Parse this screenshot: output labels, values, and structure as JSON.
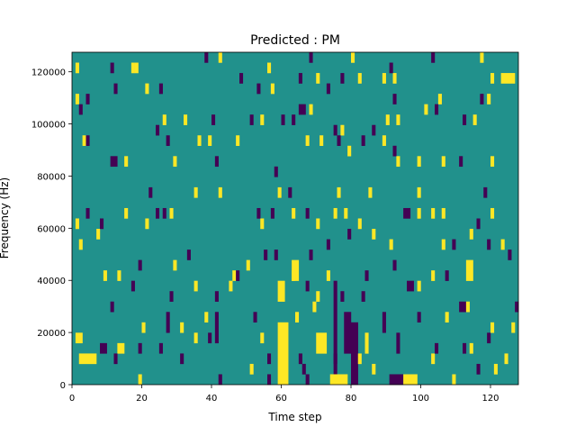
{
  "chart_data": {
    "type": "heatmap",
    "title": "Predicted : PM",
    "xlabel": "Time step",
    "ylabel": "Frequency (Hz)",
    "xlim": [
      0,
      128
    ],
    "ylim": [
      0,
      127500
    ],
    "n_time_steps": 128,
    "n_freq_bins": 32,
    "x_ticks": [
      0,
      20,
      40,
      60,
      80,
      100,
      120
    ],
    "x_tick_labels": [
      "0",
      "20",
      "40",
      "60",
      "80",
      "100",
      "120"
    ],
    "y_ticks": [
      0,
      20000,
      40000,
      60000,
      80000,
      100000,
      120000
    ],
    "y_tick_labels": [
      "0",
      "20000",
      "40000",
      "60000",
      "80000",
      "100000",
      "120000"
    ],
    "class_values": {
      "low": 0,
      "background": 1,
      "high": 2
    },
    "colors": {
      "0": "#440154",
      "1": "#21918c",
      "2": "#fde725"
    },
    "background_value": 1,
    "cells_format": "[t_start, t_end, bin_start, bin_end, value] (inclusive)",
    "cells": [
      [
        2,
        6,
        2,
        2,
        2
      ],
      [
        1,
        2,
        4,
        4,
        2
      ],
      [
        13,
        14,
        3,
        3,
        2
      ],
      [
        19,
        19,
        0,
        0,
        2
      ],
      [
        20,
        20,
        5,
        5,
        2
      ],
      [
        9,
        9,
        10,
        10,
        2
      ],
      [
        13,
        13,
        10,
        10,
        2
      ],
      [
        1,
        1,
        30,
        30,
        2
      ],
      [
        17,
        17,
        30,
        30,
        2
      ],
      [
        1,
        1,
        27,
        27,
        2
      ],
      [
        3,
        3,
        23,
        23,
        2
      ],
      [
        15,
        15,
        21,
        21,
        2
      ],
      [
        1,
        1,
        15,
        15,
        2
      ],
      [
        2,
        2,
        13,
        13,
        2
      ],
      [
        7,
        7,
        14,
        14,
        2
      ],
      [
        4,
        4,
        27,
        27,
        0
      ],
      [
        2,
        2,
        26,
        26,
        0
      ],
      [
        4,
        4,
        23,
        23,
        0
      ],
      [
        11,
        12,
        21,
        21,
        0
      ],
      [
        4,
        4,
        16,
        16,
        0
      ],
      [
        8,
        8,
        15,
        15,
        0
      ],
      [
        19,
        19,
        11,
        11,
        0
      ],
      [
        17,
        17,
        9,
        9,
        0
      ],
      [
        11,
        11,
        7,
        7,
        0
      ],
      [
        19,
        19,
        3,
        3,
        0
      ],
      [
        12,
        12,
        2,
        2,
        0
      ],
      [
        8,
        9,
        3,
        3,
        0
      ],
      [
        25,
        25,
        3,
        3,
        0
      ],
      [
        27,
        27,
        5,
        6,
        0
      ],
      [
        28,
        28,
        8,
        8,
        0
      ],
      [
        29,
        29,
        11,
        11,
        2
      ],
      [
        33,
        33,
        12,
        12,
        0
      ],
      [
        31,
        31,
        5,
        5,
        2
      ],
      [
        35,
        35,
        4,
        4,
        2
      ],
      [
        35,
        35,
        9,
        9,
        2
      ],
      [
        31,
        31,
        2,
        2,
        0
      ],
      [
        41,
        41,
        8,
        8,
        0
      ],
      [
        39,
        39,
        4,
        4,
        0
      ],
      [
        41,
        41,
        4,
        6,
        0
      ],
      [
        42,
        42,
        0,
        0,
        0
      ],
      [
        38,
        38,
        6,
        6,
        2
      ],
      [
        45,
        45,
        9,
        9,
        2
      ],
      [
        46,
        46,
        10,
        10,
        2
      ],
      [
        47,
        47,
        10,
        10,
        0
      ],
      [
        50,
        50,
        11,
        11,
        2
      ],
      [
        51,
        51,
        1,
        1,
        2
      ],
      [
        54,
        54,
        4,
        4,
        2
      ],
      [
        56,
        56,
        2,
        2,
        0
      ],
      [
        56,
        56,
        0,
        0,
        0
      ],
      [
        52,
        52,
        6,
        6,
        0
      ],
      [
        59,
        61,
        0,
        5,
        2
      ],
      [
        59,
        60,
        8,
        9,
        2
      ],
      [
        63,
        64,
        10,
        11,
        2
      ],
      [
        64,
        64,
        6,
        6,
        2
      ],
      [
        65,
        65,
        2,
        2,
        0
      ],
      [
        66,
        66,
        1,
        1,
        0
      ],
      [
        67,
        67,
        0,
        0,
        0
      ],
      [
        68,
        68,
        12,
        12,
        0
      ],
      [
        67,
        67,
        9,
        9,
        0
      ],
      [
        69,
        69,
        7,
        7,
        2
      ],
      [
        70,
        70,
        8,
        8,
        2
      ],
      [
        70,
        72,
        3,
        4,
        2
      ],
      [
        73,
        73,
        10,
        10,
        2
      ],
      [
        75,
        75,
        2,
        2,
        0
      ],
      [
        75,
        75,
        1,
        9,
        0
      ],
      [
        77,
        77,
        8,
        8,
        0
      ],
      [
        78,
        79,
        3,
        6,
        0
      ],
      [
        74,
        78,
        0,
        0,
        2
      ],
      [
        80,
        81,
        0,
        5,
        0
      ],
      [
        82,
        82,
        2,
        2,
        2
      ],
      [
        84,
        84,
        3,
        4,
        2
      ],
      [
        83,
        83,
        8,
        8,
        0
      ],
      [
        84,
        84,
        10,
        10,
        0
      ],
      [
        86,
        86,
        1,
        1,
        2
      ],
      [
        89,
        89,
        5,
        6,
        0
      ],
      [
        92,
        92,
        11,
        11,
        0
      ],
      [
        93,
        93,
        3,
        4,
        0
      ],
      [
        91,
        94,
        0,
        0,
        0
      ],
      [
        95,
        98,
        0,
        0,
        2
      ],
      [
        96,
        97,
        9,
        9,
        0
      ],
      [
        99,
        99,
        9,
        9,
        2
      ],
      [
        99,
        99,
        6,
        6,
        0
      ],
      [
        103,
        103,
        2,
        2,
        2
      ],
      [
        104,
        104,
        3,
        3,
        0
      ],
      [
        103,
        103,
        10,
        10,
        2
      ],
      [
        107,
        107,
        10,
        10,
        0
      ],
      [
        107,
        107,
        6,
        6,
        2
      ],
      [
        109,
        109,
        0,
        0,
        2
      ],
      [
        111,
        112,
        7,
        7,
        0
      ],
      [
        113,
        113,
        7,
        7,
        2
      ],
      [
        113,
        114,
        10,
        11,
        2
      ],
      [
        112,
        112,
        3,
        3,
        0
      ],
      [
        114,
        114,
        3,
        3,
        2
      ],
      [
        116,
        116,
        1,
        1,
        0
      ],
      [
        119,
        119,
        4,
        4,
        0
      ],
      [
        120,
        120,
        5,
        5,
        2
      ],
      [
        121,
        121,
        1,
        1,
        2
      ],
      [
        124,
        124,
        2,
        2,
        2
      ],
      [
        126,
        126,
        5,
        5,
        2
      ],
      [
        127,
        127,
        7,
        7,
        0
      ],
      [
        125,
        125,
        12,
        12,
        0
      ],
      [
        123,
        123,
        13,
        13,
        2
      ],
      [
        119,
        119,
        13,
        13,
        0
      ],
      [
        120,
        120,
        16,
        16,
        2
      ],
      [
        116,
        116,
        15,
        15,
        0
      ],
      [
        114,
        114,
        14,
        14,
        2
      ],
      [
        109,
        109,
        13,
        13,
        0
      ],
      [
        106,
        106,
        13,
        13,
        2
      ],
      [
        106,
        106,
        16,
        16,
        2
      ],
      [
        103,
        103,
        16,
        16,
        2
      ],
      [
        99,
        99,
        16,
        16,
        2
      ],
      [
        95,
        96,
        16,
        16,
        0
      ],
      [
        123,
        126,
        29,
        29,
        2
      ],
      [
        120,
        120,
        29,
        29,
        2
      ],
      [
        117,
        117,
        27,
        27,
        0
      ],
      [
        119,
        119,
        27,
        27,
        2
      ],
      [
        117,
        117,
        31,
        31,
        2
      ],
      [
        120,
        120,
        21,
        21,
        2
      ],
      [
        118,
        118,
        18,
        18,
        0
      ],
      [
        115,
        115,
        25,
        25,
        2
      ],
      [
        112,
        112,
        25,
        25,
        0
      ],
      [
        111,
        111,
        21,
        21,
        0
      ],
      [
        106,
        106,
        21,
        21,
        2
      ],
      [
        105,
        105,
        27,
        27,
        2
      ],
      [
        104,
        104,
        26,
        26,
        0
      ],
      [
        103,
        103,
        31,
        31,
        0
      ],
      [
        101,
        101,
        26,
        26,
        2
      ],
      [
        99,
        99,
        21,
        21,
        2
      ],
      [
        99,
        99,
        18,
        18,
        2
      ],
      [
        92,
        92,
        29,
        29,
        2
      ],
      [
        92,
        92,
        27,
        27,
        0
      ],
      [
        93,
        93,
        25,
        25,
        2
      ],
      [
        92,
        92,
        22,
        22,
        0
      ],
      [
        93,
        93,
        21,
        21,
        2
      ],
      [
        90,
        90,
        25,
        25,
        2
      ],
      [
        89,
        89,
        23,
        23,
        2
      ],
      [
        89,
        89,
        29,
        29,
        2
      ],
      [
        91,
        91,
        30,
        30,
        0
      ],
      [
        85,
        85,
        18,
        18,
        2
      ],
      [
        83,
        83,
        23,
        23,
        0
      ],
      [
        86,
        86,
        24,
        24,
        0
      ],
      [
        82,
        82,
        29,
        29,
        2
      ],
      [
        79,
        79,
        22,
        22,
        2
      ],
      [
        80,
        80,
        31,
        31,
        2
      ],
      [
        77,
        77,
        24,
        24,
        2
      ],
      [
        77,
        77,
        29,
        29,
        0
      ],
      [
        75,
        75,
        24,
        24,
        0
      ],
      [
        76,
        76,
        23,
        23,
        0
      ],
      [
        73,
        73,
        28,
        28,
        0
      ],
      [
        70,
        70,
        29,
        29,
        2
      ],
      [
        71,
        71,
        23,
        23,
        2
      ],
      [
        67,
        67,
        23,
        23,
        2
      ],
      [
        68,
        68,
        26,
        26,
        2
      ],
      [
        65,
        66,
        26,
        26,
        0
      ],
      [
        68,
        68,
        31,
        31,
        0
      ],
      [
        65,
        65,
        29,
        29,
        0
      ],
      [
        63,
        63,
        25,
        25,
        0
      ],
      [
        60,
        60,
        25,
        25,
        0
      ],
      [
        58,
        58,
        20,
        20,
        0
      ],
      [
        59,
        59,
        18,
        18,
        2
      ],
      [
        62,
        62,
        18,
        18,
        0
      ],
      [
        57,
        57,
        28,
        28,
        2
      ],
      [
        56,
        56,
        30,
        30,
        2
      ],
      [
        54,
        54,
        25,
        25,
        2
      ],
      [
        53,
        53,
        28,
        28,
        0
      ],
      [
        51,
        51,
        25,
        25,
        0
      ],
      [
        48,
        48,
        29,
        29,
        0
      ],
      [
        47,
        47,
        23,
        23,
        2
      ],
      [
        42,
        42,
        18,
        18,
        2
      ],
      [
        41,
        41,
        21,
        21,
        0
      ],
      [
        40,
        40,
        25,
        25,
        0
      ],
      [
        38,
        38,
        31,
        31,
        0
      ],
      [
        42,
        42,
        31,
        31,
        2
      ],
      [
        36,
        36,
        23,
        23,
        2
      ],
      [
        39,
        39,
        23,
        23,
        2
      ],
      [
        32,
        32,
        25,
        25,
        2
      ],
      [
        27,
        27,
        23,
        23,
        0
      ],
      [
        26,
        26,
        25,
        25,
        2
      ],
      [
        24,
        24,
        24,
        24,
        0
      ],
      [
        25,
        25,
        28,
        28,
        0
      ],
      [
        21,
        21,
        28,
        28,
        2
      ],
      [
        29,
        29,
        21,
        21,
        2
      ],
      [
        22,
        22,
        18,
        18,
        0
      ],
      [
        35,
        35,
        18,
        18,
        2
      ],
      [
        15,
        15,
        16,
        16,
        2
      ],
      [
        21,
        21,
        15,
        15,
        2
      ],
      [
        24,
        24,
        16,
        16,
        0
      ],
      [
        28,
        28,
        16,
        16,
        2
      ],
      [
        26,
        26,
        16,
        16,
        0
      ],
      [
        12,
        12,
        28,
        28,
        0
      ],
      [
        11,
        11,
        30,
        30,
        0
      ],
      [
        18,
        18,
        30,
        30,
        2
      ],
      [
        53,
        53,
        16,
        16,
        0
      ],
      [
        54,
        54,
        15,
        15,
        2
      ],
      [
        57,
        57,
        16,
        16,
        0
      ],
      [
        63,
        63,
        16,
        16,
        2
      ],
      [
        67,
        67,
        16,
        16,
        0
      ],
      [
        70,
        70,
        15,
        15,
        2
      ],
      [
        73,
        73,
        13,
        13,
        0
      ],
      [
        76,
        76,
        18,
        18,
        2
      ],
      [
        75,
        75,
        16,
        16,
        2
      ],
      [
        78,
        78,
        16,
        16,
        2
      ],
      [
        82,
        82,
        15,
        15,
        2
      ],
      [
        79,
        79,
        14,
        14,
        0
      ],
      [
        86,
        86,
        14,
        14,
        2
      ],
      [
        91,
        91,
        13,
        13,
        2
      ],
      [
        55,
        55,
        12,
        12,
        0
      ],
      [
        58,
        58,
        12,
        12,
        0
      ],
      [
        63,
        63,
        10,
        10,
        2
      ]
    ]
  }
}
